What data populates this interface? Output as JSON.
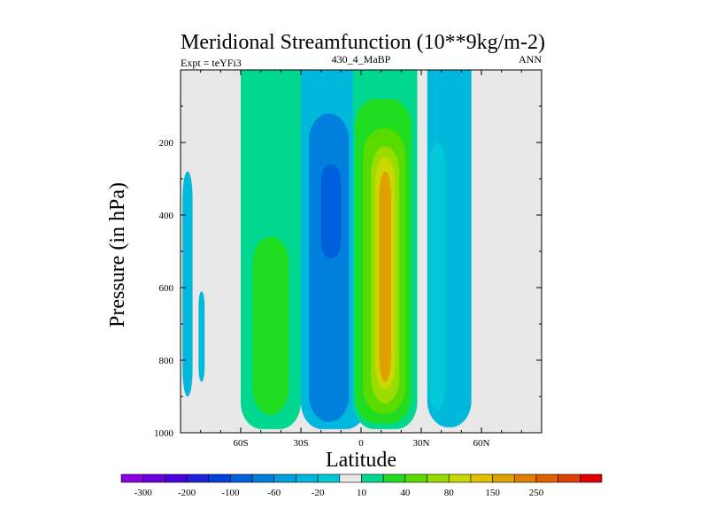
{
  "chart_data": {
    "type": "heatmap",
    "title": "Meridional Streamfunction (10**9kg/m-2)",
    "subtitle_left": "Expt = teYFi3",
    "subtitle_center": "430_4_MaBP",
    "subtitle_right": "ANN",
    "xlabel": "Latitude",
    "ylabel": "Pressure (in hPa)",
    "xlim": [
      -90,
      90
    ],
    "ylim": [
      1000,
      0
    ],
    "x_ticks": [
      {
        "value": -60,
        "label": "60S"
      },
      {
        "value": -30,
        "label": "30S"
      },
      {
        "value": 0,
        "label": "0"
      },
      {
        "value": 30,
        "label": "30N"
      },
      {
        "value": 60,
        "label": "60N"
      }
    ],
    "y_ticks": [
      {
        "value": 200,
        "label": "200"
      },
      {
        "value": 400,
        "label": "400"
      },
      {
        "value": 600,
        "label": "600"
      },
      {
        "value": 800,
        "label": "800"
      },
      {
        "value": 1000,
        "label": "1000"
      }
    ],
    "background_color": "#e8e8e8",
    "colorbar": {
      "colors": [
        "#8a00e0",
        "#6a00e0",
        "#4b00e0",
        "#2020dc",
        "#0040dc",
        "#0060dc",
        "#0080dc",
        "#00a0dc",
        "#00b8dc",
        "#00c8d8",
        "#e8e8e8",
        "#00d890",
        "#20dc20",
        "#58dc00",
        "#98dc00",
        "#c8d800",
        "#e0c000",
        "#e0a000",
        "#e08000",
        "#e06000",
        "#e04000",
        "#e00000"
      ],
      "labels": [
        {
          "after_index": 0,
          "label": "-300"
        },
        {
          "after_index": 2,
          "label": "-200"
        },
        {
          "after_index": 4,
          "label": "-100"
        },
        {
          "after_index": 6,
          "label": "-60"
        },
        {
          "after_index": 8,
          "label": "-20"
        },
        {
          "after_index": 10,
          "label": "10"
        },
        {
          "after_index": 12,
          "label": "40"
        },
        {
          "after_index": 14,
          "label": "80"
        },
        {
          "after_index": 16,
          "label": "150"
        },
        {
          "after_index": 18,
          "label": "250"
        }
      ]
    },
    "contours": [
      {
        "color": "#00d890",
        "lat_range": [
          -60,
          -30
        ],
        "p_range": [
          990,
          0
        ]
      },
      {
        "color": "#20dc20",
        "lat_range": [
          -54,
          -36
        ],
        "p_range": [
          950,
          460
        ]
      },
      {
        "color": "#00b8dc",
        "lat_range": [
          -89,
          -84
        ],
        "p_range": [
          900,
          280
        ]
      },
      {
        "color": "#00b8dc",
        "lat_range": [
          -81,
          -78
        ],
        "p_range": [
          860,
          610
        ]
      },
      {
        "color": "#00b8dc",
        "lat_range": [
          -30,
          3
        ],
        "p_range": [
          990,
          0
        ]
      },
      {
        "color": "#0080dc",
        "lat_range": [
          -26,
          -6
        ],
        "p_range": [
          970,
          120
        ]
      },
      {
        "color": "#0060dc",
        "lat_range": [
          -20,
          -10
        ],
        "p_range": [
          520,
          260
        ]
      },
      {
        "color": "#00d890",
        "lat_range": [
          -4,
          28
        ],
        "p_range": [
          990,
          0
        ]
      },
      {
        "color": "#20dc20",
        "lat_range": [
          -3,
          25
        ],
        "p_range": [
          975,
          80
        ]
      },
      {
        "color": "#58dc00",
        "lat_range": [
          1,
          22
        ],
        "p_range": [
          950,
          160
        ]
      },
      {
        "color": "#98dc00",
        "lat_range": [
          5,
          19
        ],
        "p_range": [
          920,
          210
        ]
      },
      {
        "color": "#c8d800",
        "lat_range": [
          7,
          17
        ],
        "p_range": [
          880,
          240
        ]
      },
      {
        "color": "#e0a000",
        "lat_range": [
          9,
          15
        ],
        "p_range": [
          860,
          280
        ]
      },
      {
        "color": "#00b8dc",
        "lat_range": [
          33,
          55
        ],
        "p_range": [
          985,
          0
        ]
      },
      {
        "color": "#00c8d8",
        "lat_range": [
          34,
          42
        ],
        "p_range": [
          940,
          200
        ]
      }
    ]
  }
}
